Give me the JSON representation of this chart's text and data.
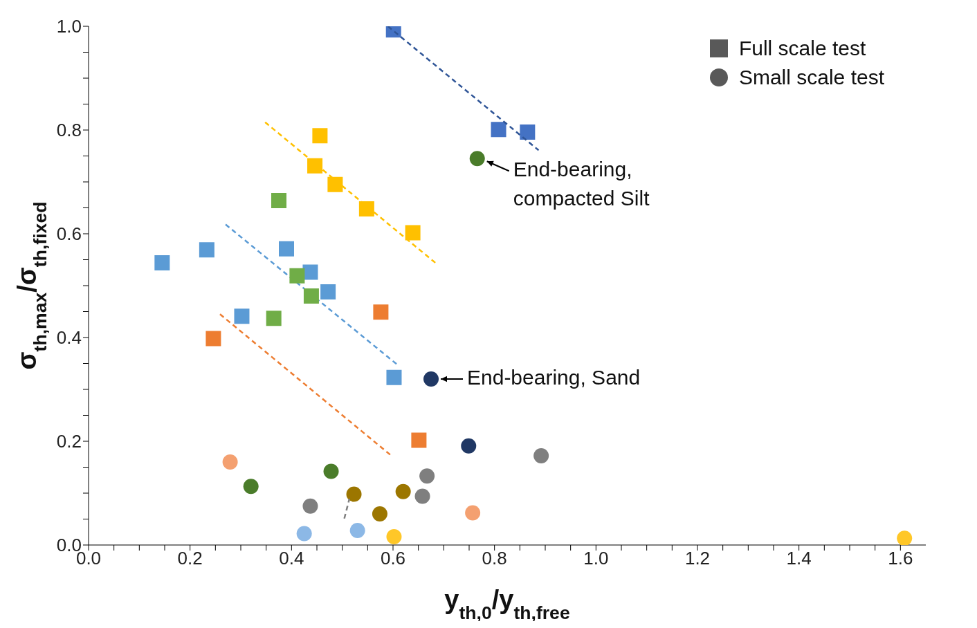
{
  "chart_data": {
    "type": "scatter",
    "xlabel": "y$_{th,0}$/y$_{th,free}$",
    "ylabel": "σ$_{th,max}$/σ$_{th,fixed}$",
    "xlim": [
      0,
      1.65
    ],
    "ylim": [
      0,
      1.0
    ],
    "xticks": [
      {
        "value": 0,
        "label": "0.0"
      },
      {
        "value": 0.05,
        "label": null
      },
      {
        "value": 0.1,
        "label": null
      },
      {
        "value": 0.15,
        "label": null
      },
      {
        "value": 0.2,
        "label": "0.2"
      },
      {
        "value": 0.25,
        "label": null
      },
      {
        "value": 0.3,
        "label": null
      },
      {
        "value": 0.35,
        "label": null
      },
      {
        "value": 0.4,
        "label": "0.4"
      },
      {
        "value": 0.45,
        "label": null
      },
      {
        "value": 0.5,
        "label": null
      },
      {
        "value": 0.55,
        "label": null
      },
      {
        "value": 0.6,
        "label": "0.6"
      },
      {
        "value": 0.65,
        "label": null
      },
      {
        "value": 0.7,
        "label": null
      },
      {
        "value": 0.75,
        "label": null
      },
      {
        "value": 0.8,
        "label": "0.8"
      },
      {
        "value": 0.85,
        "label": null
      },
      {
        "value": 0.9,
        "label": null
      },
      {
        "value": 0.95,
        "label": null
      },
      {
        "value": 1.0,
        "label": "1.0"
      },
      {
        "value": 1.05,
        "label": null
      },
      {
        "value": 1.1,
        "label": null
      },
      {
        "value": 1.15,
        "label": null
      },
      {
        "value": 1.2,
        "label": "1.2"
      },
      {
        "value": 1.25,
        "label": null
      },
      {
        "value": 1.3,
        "label": null
      },
      {
        "value": 1.35,
        "label": null
      },
      {
        "value": 1.4,
        "label": "1.4"
      },
      {
        "value": 1.45,
        "label": null
      },
      {
        "value": 1.5,
        "label": null
      },
      {
        "value": 1.55,
        "label": null
      },
      {
        "value": 1.6,
        "label": "1.6"
      }
    ],
    "yticks": [
      {
        "value": 0,
        "label": "0.0"
      },
      {
        "value": 0.05,
        "label": null
      },
      {
        "value": 0.1,
        "label": null
      },
      {
        "value": 0.15,
        "label": null
      },
      {
        "value": 0.2,
        "label": "0.2"
      },
      {
        "value": 0.25,
        "label": null
      },
      {
        "value": 0.3,
        "label": null
      },
      {
        "value": 0.35,
        "label": null
      },
      {
        "value": 0.4,
        "label": "0.4"
      },
      {
        "value": 0.45,
        "label": null
      },
      {
        "value": 0.5,
        "label": null
      },
      {
        "value": 0.55,
        "label": null
      },
      {
        "value": 0.6,
        "label": "0.6"
      },
      {
        "value": 0.65,
        "label": null
      },
      {
        "value": 0.7,
        "label": null
      },
      {
        "value": 0.75,
        "label": null
      },
      {
        "value": 0.8,
        "label": "0.8"
      },
      {
        "value": 0.85,
        "label": null
      },
      {
        "value": 0.9,
        "label": null
      },
      {
        "value": 0.95,
        "label": null
      },
      {
        "value": 1.0,
        "label": "1.0"
      }
    ],
    "grid": false,
    "legend": "top right",
    "series": [
      {
        "name": "Full scale test",
        "marker": "square",
        "color": "#595959"
      },
      {
        "name": "Small scale test",
        "marker": "circle",
        "color": "#595959"
      },
      {
        "marker": "square",
        "color": "#4472c4",
        "x": [
          0.601,
          0.808,
          0.865
        ],
        "values": [
          0.993,
          0.801,
          0.796
        ]
      },
      {
        "type": "line",
        "marker": "none",
        "line_style": "dashed",
        "color": "#2f5597",
        "x": [
          0.59,
          0.887
        ],
        "values": [
          1.0,
          0.761
        ]
      },
      {
        "type": "scatter",
        "marker": "square",
        "color": "#ffc000",
        "x": [
          0.456,
          0.446,
          0.486,
          0.548,
          0.639
        ],
        "values": [
          0.789,
          0.731,
          0.695,
          0.648,
          0.602
        ]
      },
      {
        "type": "line",
        "marker": "none",
        "line_style": "dashed",
        "color": "#ffc000",
        "x": [
          0.348,
          0.686
        ],
        "values": [
          0.815,
          0.542
        ]
      },
      {
        "type": "scatter",
        "marker": "square",
        "color": "#5b9bd5",
        "x": [
          0.145,
          0.233,
          0.39,
          0.437,
          0.472,
          0.302,
          0.602
        ],
        "values": [
          0.544,
          0.569,
          0.571,
          0.526,
          0.488,
          0.441,
          0.323
        ]
      },
      {
        "type": "line",
        "marker": "none",
        "line_style": "dashed",
        "color": "#5b9bd5",
        "x": [
          0.27,
          0.608
        ],
        "values": [
          0.618,
          0.348
        ]
      },
      {
        "type": "scatter",
        "marker": "square",
        "color": "#70ad47",
        "x": [
          0.375,
          0.411,
          0.439,
          0.365
        ],
        "values": [
          0.664,
          0.519,
          0.48,
          0.437
        ]
      },
      {
        "type": "scatter",
        "marker": "square",
        "color": "#ed7d31",
        "x": [
          0.246,
          0.576,
          0.651
        ],
        "values": [
          0.398,
          0.449,
          0.202
        ]
      },
      {
        "type": "line",
        "marker": "none",
        "line_style": "dashed",
        "color": "#ed7d31",
        "x": [
          0.259,
          0.597
        ],
        "values": [
          0.445,
          0.172
        ]
      },
      {
        "type": "scatter",
        "marker": "circle",
        "color": "#4a7c2a",
        "x": [
          0.766,
          0.32,
          0.478
        ],
        "values": [
          0.745,
          0.113,
          0.142
        ]
      },
      {
        "type": "scatter",
        "marker": "circle",
        "color": "#203864",
        "x": [
          0.675,
          0.749
        ],
        "values": [
          0.32,
          0.191
        ]
      },
      {
        "type": "scatter",
        "marker": "circle",
        "color": "#7f7f7f",
        "x": [
          0.892,
          0.667,
          0.658,
          0.437
        ],
        "values": [
          0.172,
          0.133,
          0.094,
          0.075
        ]
      },
      {
        "type": "scatter",
        "marker": "circle",
        "color": "#f4a070",
        "x": [
          0.279,
          0.757
        ],
        "values": [
          0.16,
          0.062
        ]
      },
      {
        "type": "scatter",
        "marker": "circle",
        "color": "#9c7600",
        "x": [
          0.523,
          0.62,
          0.574
        ],
        "values": [
          0.098,
          0.103,
          0.06
        ]
      },
      {
        "type": "line",
        "marker": "none",
        "line_style": "dashed",
        "color": "#7f7f7f",
        "x": [
          0.504,
          0.514
        ],
        "values": [
          0.051,
          0.089
        ]
      },
      {
        "type": "scatter",
        "marker": "circle",
        "color": "#8cb8e6",
        "x": [
          0.425,
          0.53
        ],
        "values": [
          0.022,
          0.028
        ]
      },
      {
        "type": "scatter",
        "marker": "circle",
        "color": "#ffc728",
        "x": [
          0.602,
          1.608
        ],
        "values": [
          0.016,
          0.013
        ]
      }
    ],
    "annotations": [
      {
        "text": "End-bearing,\ncompacted Silt",
        "x": 0.766,
        "y": 0.745
      },
      {
        "text": "End-bearing, Sand",
        "x": 0.675,
        "y": 0.32
      }
    ]
  }
}
